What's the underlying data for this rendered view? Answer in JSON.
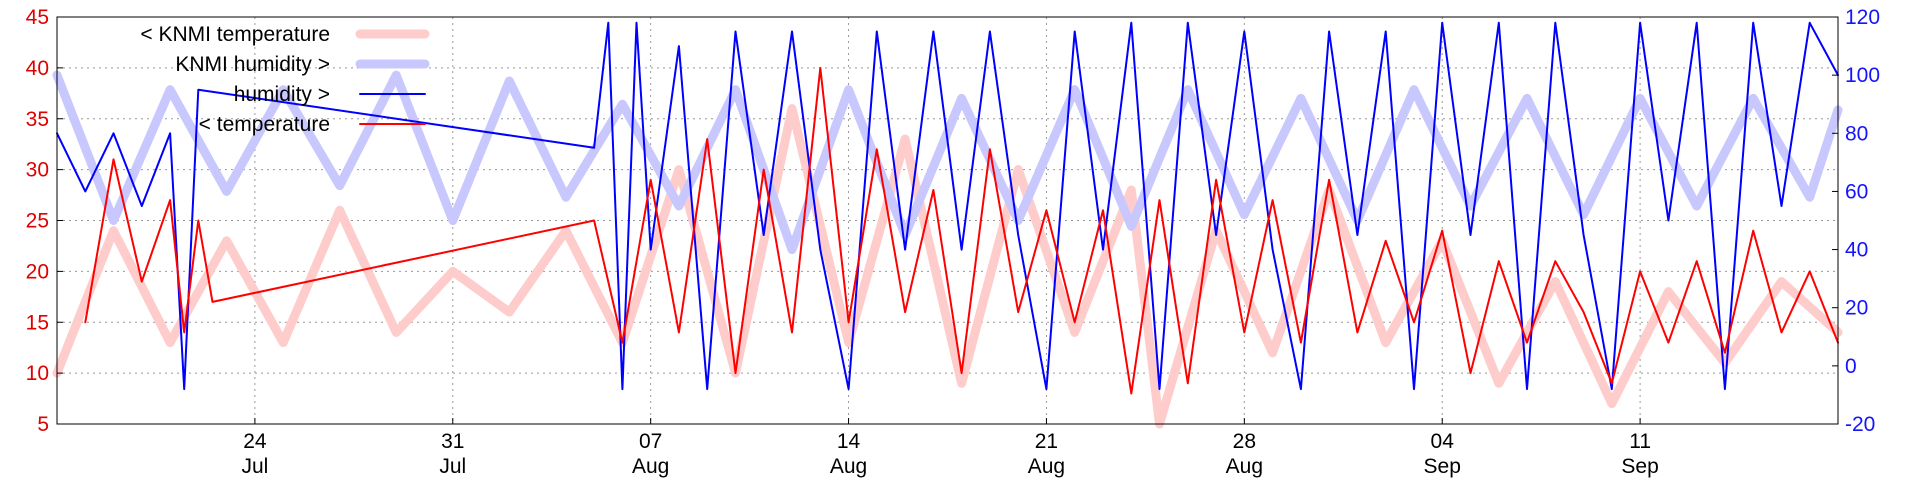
{
  "chart_data": {
    "type": "line",
    "title": "",
    "xlabel": "",
    "ylabel": "",
    "y_left_lim": [
      5,
      45
    ],
    "y_right_lim": [
      -20,
      120
    ],
    "y_left_ticks": [
      "5",
      "10",
      "15",
      "20",
      "25",
      "30",
      "35",
      "40",
      "45"
    ],
    "y_right_ticks": [
      "-20",
      "0",
      "20",
      "40",
      "60",
      "80",
      "100",
      "120"
    ],
    "x_range_days": [
      "2012-07-17",
      "2012-09-18"
    ],
    "x_ticks": [
      {
        "date": "2012-07-24",
        "day": "24",
        "month": "Jul"
      },
      {
        "date": "2012-07-31",
        "day": "31",
        "month": "Jul"
      },
      {
        "date": "2012-08-07",
        "day": "07",
        "month": "Aug"
      },
      {
        "date": "2012-08-14",
        "day": "14",
        "month": "Aug"
      },
      {
        "date": "2012-08-21",
        "day": "21",
        "month": "Aug"
      },
      {
        "date": "2012-08-28",
        "day": "28",
        "month": "Aug"
      },
      {
        "date": "2012-09-04",
        "day": "04",
        "month": "Sep"
      },
      {
        "date": "2012-09-11",
        "day": "11",
        "month": "Sep"
      }
    ],
    "grid": true,
    "legend_position": "top-left",
    "series": [
      {
        "name": "< KNMI temperature",
        "axis": "left",
        "color": "#ffcccc",
        "points": [
          {
            "x": "2012-07-17",
            "y": 10
          },
          {
            "x": "2012-07-19",
            "y": 24
          },
          {
            "x": "2012-07-21",
            "y": 13
          },
          {
            "x": "2012-07-23",
            "y": 23
          },
          {
            "x": "2012-07-25",
            "y": 13
          },
          {
            "x": "2012-07-27",
            "y": 26
          },
          {
            "x": "2012-07-29",
            "y": 14
          },
          {
            "x": "2012-07-31",
            "y": 20
          },
          {
            "x": "2012-08-02",
            "y": 16
          },
          {
            "x": "2012-08-04",
            "y": 24
          },
          {
            "x": "2012-08-06",
            "y": 13
          },
          {
            "x": "2012-08-08",
            "y": 30
          },
          {
            "x": "2012-08-10",
            "y": 10
          },
          {
            "x": "2012-08-12",
            "y": 36
          },
          {
            "x": "2012-08-14",
            "y": 13
          },
          {
            "x": "2012-08-16",
            "y": 33
          },
          {
            "x": "2012-08-18",
            "y": 9
          },
          {
            "x": "2012-08-20",
            "y": 30
          },
          {
            "x": "2012-08-22",
            "y": 14
          },
          {
            "x": "2012-08-24",
            "y": 28
          },
          {
            "x": "2012-08-25",
            "y": 5
          },
          {
            "x": "2012-08-27",
            "y": 24
          },
          {
            "x": "2012-08-29",
            "y": 12
          },
          {
            "x": "2012-08-31",
            "y": 28
          },
          {
            "x": "2012-09-02",
            "y": 13
          },
          {
            "x": "2012-09-04",
            "y": 23
          },
          {
            "x": "2012-09-06",
            "y": 9
          },
          {
            "x": "2012-09-08",
            "y": 19
          },
          {
            "x": "2012-09-10",
            "y": 7
          },
          {
            "x": "2012-09-12",
            "y": 18
          },
          {
            "x": "2012-09-14",
            "y": 11
          },
          {
            "x": "2012-09-16",
            "y": 19
          },
          {
            "x": "2012-09-18",
            "y": 14
          }
        ]
      },
      {
        "name": "KNMI humidity >",
        "axis": "right",
        "color": "#c8c8ff",
        "points": [
          {
            "x": "2012-07-17",
            "y": 100
          },
          {
            "x": "2012-07-19",
            "y": 50
          },
          {
            "x": "2012-07-21",
            "y": 95
          },
          {
            "x": "2012-07-23",
            "y": 60
          },
          {
            "x": "2012-07-25",
            "y": 95
          },
          {
            "x": "2012-07-27",
            "y": 62
          },
          {
            "x": "2012-07-29",
            "y": 100
          },
          {
            "x": "2012-07-31",
            "y": 50
          },
          {
            "x": "2012-08-02",
            "y": 98
          },
          {
            "x": "2012-08-04",
            "y": 58
          },
          {
            "x": "2012-08-06",
            "y": 90
          },
          {
            "x": "2012-08-08",
            "y": 55
          },
          {
            "x": "2012-08-10",
            "y": 95
          },
          {
            "x": "2012-08-12",
            "y": 40
          },
          {
            "x": "2012-08-14",
            "y": 95
          },
          {
            "x": "2012-08-16",
            "y": 45
          },
          {
            "x": "2012-08-18",
            "y": 92
          },
          {
            "x": "2012-08-20",
            "y": 50
          },
          {
            "x": "2012-08-22",
            "y": 95
          },
          {
            "x": "2012-08-24",
            "y": 48
          },
          {
            "x": "2012-08-26",
            "y": 95
          },
          {
            "x": "2012-08-28",
            "y": 52
          },
          {
            "x": "2012-08-30",
            "y": 92
          },
          {
            "x": "2012-09-01",
            "y": 50
          },
          {
            "x": "2012-09-03",
            "y": 95
          },
          {
            "x": "2012-09-05",
            "y": 55
          },
          {
            "x": "2012-09-07",
            "y": 92
          },
          {
            "x": "2012-09-09",
            "y": 52
          },
          {
            "x": "2012-09-11",
            "y": 92
          },
          {
            "x": "2012-09-13",
            "y": 55
          },
          {
            "x": "2012-09-15",
            "y": 92
          },
          {
            "x": "2012-09-17",
            "y": 58
          },
          {
            "x": "2012-09-18",
            "y": 88
          }
        ]
      },
      {
        "name": "humidity >",
        "axis": "right",
        "color": "#0000ff",
        "points": [
          {
            "x": "2012-07-17",
            "y": 80
          },
          {
            "x": "2012-07-18",
            "y": 60
          },
          {
            "x": "2012-07-19",
            "y": 80
          },
          {
            "x": "2012-07-20",
            "y": 55
          },
          {
            "x": "2012-07-21",
            "y": 80
          },
          {
            "x": "2012-07-21.5",
            "y": -8
          },
          {
            "x": "2012-07-22",
            "y": 95
          },
          {
            "x": "2012-08-05",
            "y": 75
          },
          {
            "x": "2012-08-05.5",
            "y": 118
          },
          {
            "x": "2012-08-06",
            "y": -8
          },
          {
            "x": "2012-08-06.5",
            "y": 118
          },
          {
            "x": "2012-08-07",
            "y": 40
          },
          {
            "x": "2012-08-08",
            "y": 110
          },
          {
            "x": "2012-08-09",
            "y": -8
          },
          {
            "x": "2012-08-10",
            "y": 115
          },
          {
            "x": "2012-08-11",
            "y": 45
          },
          {
            "x": "2012-08-12",
            "y": 115
          },
          {
            "x": "2012-08-13",
            "y": 40
          },
          {
            "x": "2012-08-14",
            "y": -8
          },
          {
            "x": "2012-08-15",
            "y": 115
          },
          {
            "x": "2012-08-16",
            "y": 40
          },
          {
            "x": "2012-08-17",
            "y": 115
          },
          {
            "x": "2012-08-18",
            "y": 40
          },
          {
            "x": "2012-08-19",
            "y": 115
          },
          {
            "x": "2012-08-20",
            "y": 45
          },
          {
            "x": "2012-08-21",
            "y": -8
          },
          {
            "x": "2012-08-22",
            "y": 115
          },
          {
            "x": "2012-08-23",
            "y": 40
          },
          {
            "x": "2012-08-24",
            "y": 118
          },
          {
            "x": "2012-08-25",
            "y": -8
          },
          {
            "x": "2012-08-26",
            "y": 118
          },
          {
            "x": "2012-08-27",
            "y": 45
          },
          {
            "x": "2012-08-28",
            "y": 115
          },
          {
            "x": "2012-08-29",
            "y": 40
          },
          {
            "x": "2012-08-30",
            "y": -8
          },
          {
            "x": "2012-08-31",
            "y": 115
          },
          {
            "x": "2012-09-01",
            "y": 45
          },
          {
            "x": "2012-09-02",
            "y": 115
          },
          {
            "x": "2012-09-03",
            "y": -8
          },
          {
            "x": "2012-09-04",
            "y": 118
          },
          {
            "x": "2012-09-05",
            "y": 45
          },
          {
            "x": "2012-09-06",
            "y": 118
          },
          {
            "x": "2012-09-07",
            "y": -8
          },
          {
            "x": "2012-09-08",
            "y": 118
          },
          {
            "x": "2012-09-09",
            "y": 45
          },
          {
            "x": "2012-09-10",
            "y": -8
          },
          {
            "x": "2012-09-11",
            "y": 118
          },
          {
            "x": "2012-09-12",
            "y": 50
          },
          {
            "x": "2012-09-13",
            "y": 118
          },
          {
            "x": "2012-09-14",
            "y": -8
          },
          {
            "x": "2012-09-15",
            "y": 118
          },
          {
            "x": "2012-09-16",
            "y": 55
          },
          {
            "x": "2012-09-17",
            "y": 118
          },
          {
            "x": "2012-09-18",
            "y": 100
          }
        ]
      },
      {
        "name": "< temperature",
        "axis": "left",
        "color": "#ff0000",
        "points": [
          {
            "x": "2012-07-18",
            "y": 15
          },
          {
            "x": "2012-07-19",
            "y": 31
          },
          {
            "x": "2012-07-20",
            "y": 19
          },
          {
            "x": "2012-07-21",
            "y": 27
          },
          {
            "x": "2012-07-21.5",
            "y": 14
          },
          {
            "x": "2012-07-22",
            "y": 25
          },
          {
            "x": "2012-07-22.5",
            "y": 17
          },
          {
            "x": "2012-08-05",
            "y": 25
          },
          {
            "x": "2012-08-06",
            "y": 13
          },
          {
            "x": "2012-08-07",
            "y": 29
          },
          {
            "x": "2012-08-08",
            "y": 14
          },
          {
            "x": "2012-08-09",
            "y": 33
          },
          {
            "x": "2012-08-10",
            "y": 10
          },
          {
            "x": "2012-08-11",
            "y": 30
          },
          {
            "x": "2012-08-12",
            "y": 14
          },
          {
            "x": "2012-08-13",
            "y": 40
          },
          {
            "x": "2012-08-14",
            "y": 15
          },
          {
            "x": "2012-08-15",
            "y": 32
          },
          {
            "x": "2012-08-16",
            "y": 16
          },
          {
            "x": "2012-08-17",
            "y": 28
          },
          {
            "x": "2012-08-18",
            "y": 10
          },
          {
            "x": "2012-08-19",
            "y": 32
          },
          {
            "x": "2012-08-20",
            "y": 16
          },
          {
            "x": "2012-08-21",
            "y": 26
          },
          {
            "x": "2012-08-22",
            "y": 15
          },
          {
            "x": "2012-08-23",
            "y": 26
          },
          {
            "x": "2012-08-24",
            "y": 8
          },
          {
            "x": "2012-08-25",
            "y": 27
          },
          {
            "x": "2012-08-26",
            "y": 9
          },
          {
            "x": "2012-08-27",
            "y": 29
          },
          {
            "x": "2012-08-28",
            "y": 14
          },
          {
            "x": "2012-08-29",
            "y": 27
          },
          {
            "x": "2012-08-30",
            "y": 13
          },
          {
            "x": "2012-08-31",
            "y": 29
          },
          {
            "x": "2012-09-01",
            "y": 14
          },
          {
            "x": "2012-09-02",
            "y": 23
          },
          {
            "x": "2012-09-03",
            "y": 15
          },
          {
            "x": "2012-09-04",
            "y": 24
          },
          {
            "x": "2012-09-05",
            "y": 10
          },
          {
            "x": "2012-09-06",
            "y": 21
          },
          {
            "x": "2012-09-07",
            "y": 13
          },
          {
            "x": "2012-09-08",
            "y": 21
          },
          {
            "x": "2012-09-09",
            "y": 16
          },
          {
            "x": "2012-09-10",
            "y": 9
          },
          {
            "x": "2012-09-11",
            "y": 20
          },
          {
            "x": "2012-09-12",
            "y": 13
          },
          {
            "x": "2012-09-13",
            "y": 21
          },
          {
            "x": "2012-09-14",
            "y": 12
          },
          {
            "x": "2012-09-15",
            "y": 24
          },
          {
            "x": "2012-09-16",
            "y": 14
          },
          {
            "x": "2012-09-17",
            "y": 20
          },
          {
            "x": "2012-09-18",
            "y": 13
          }
        ]
      }
    ]
  }
}
